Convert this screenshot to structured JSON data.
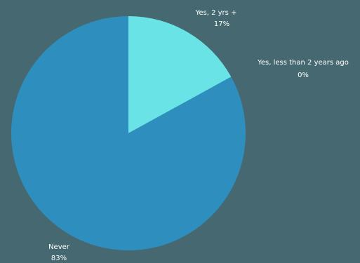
{
  "chart_data": {
    "type": "pie",
    "title": "",
    "categories": [
      "Yes, 2 yrs +",
      "Yes, less than 2 years ago",
      "Never"
    ],
    "values": [
      17,
      0,
      83
    ],
    "value_labels": [
      "17%",
      "0%",
      "83%"
    ],
    "colors": [
      "#6ae3e6",
      "#5ad0e0",
      "#2e8ebd"
    ],
    "legend": "none",
    "start_angle_deg": 0,
    "direction": "clockwise"
  },
  "colors": {
    "background": "#466971",
    "label_text": "#ffffff"
  }
}
